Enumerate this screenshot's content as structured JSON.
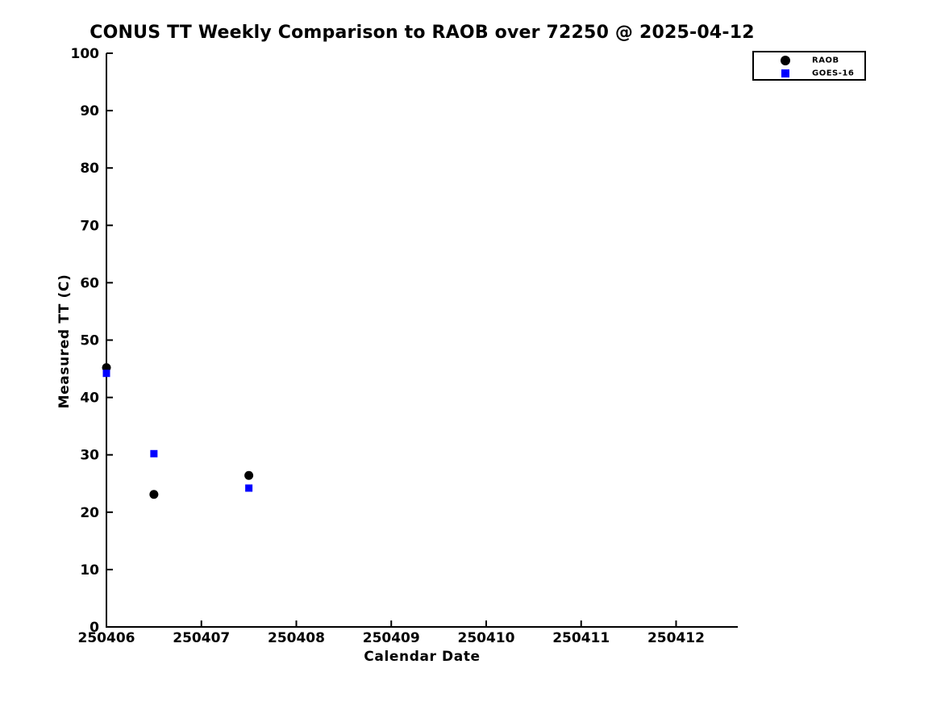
{
  "chart_data": {
    "type": "scatter",
    "title": "CONUS TT Weekly Comparison to RAOB over 72250 @ 2025-04-12",
    "xlabel": "Calendar Date",
    "ylabel": "Measured TT (C)",
    "xlim": [
      250406,
      250412.65
    ],
    "ylim": [
      0,
      100
    ],
    "x_ticks": [
      250406,
      250407,
      250408,
      250409,
      250410,
      250411,
      250412
    ],
    "y_ticks": [
      0,
      10,
      20,
      30,
      40,
      50,
      60,
      70,
      80,
      90,
      100
    ],
    "grid": false,
    "legend_position": "outside-top-right",
    "series": [
      {
        "name": "RAOB",
        "marker": "circle",
        "color": "#000000",
        "points": [
          {
            "x": 250406.0,
            "y": 45.2
          },
          {
            "x": 250406.5,
            "y": 23.1
          },
          {
            "x": 250407.5,
            "y": 26.4
          }
        ]
      },
      {
        "name": "GOES-16",
        "marker": "square",
        "color": "#0000ff",
        "points": [
          {
            "x": 250406.0,
            "y": 44.2
          },
          {
            "x": 250406.5,
            "y": 30.2
          },
          {
            "x": 250407.5,
            "y": 24.2
          }
        ]
      }
    ]
  },
  "legend": {
    "items": [
      {
        "label": "RAOB",
        "marker": "circle",
        "color": "#000000"
      },
      {
        "label": "GOES-16",
        "marker": "square",
        "color": "#0000ff"
      }
    ]
  },
  "colors": {
    "background": "#ffffff",
    "axis": "#000000",
    "text": "#000000",
    "raob": "#000000",
    "goes16": "#0000ff"
  }
}
